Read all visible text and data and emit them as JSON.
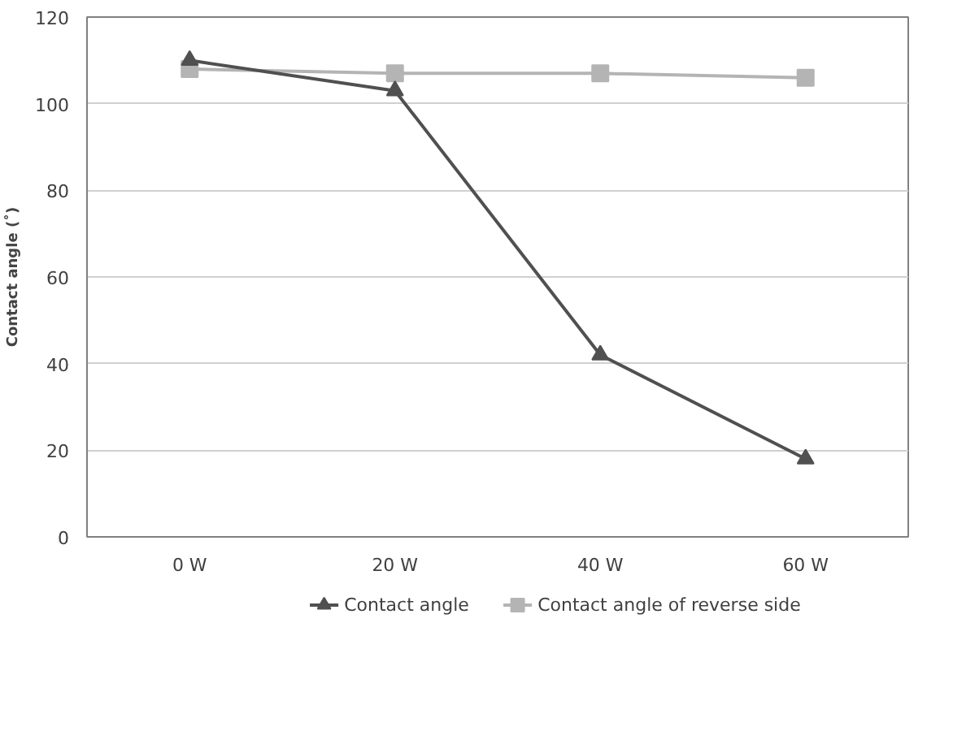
{
  "chart_data": {
    "type": "line",
    "ylabel": "Contact angle (˚)",
    "categories": [
      "0 W",
      "20 W",
      "40 W",
      "60 W"
    ],
    "series": [
      {
        "name": "Contact angle",
        "color": "#505050",
        "marker": "triangle",
        "values": [
          110,
          103,
          42,
          18
        ]
      },
      {
        "name": "Contact angle of reverse side",
        "color": "#b4b4b4",
        "marker": "square",
        "values": [
          108,
          107,
          107,
          106
        ]
      }
    ],
    "ylim": [
      0,
      120
    ],
    "yticks": [
      0,
      20,
      40,
      60,
      80,
      100,
      120
    ],
    "grid": "y",
    "legend": "bottom",
    "line_style": "solid"
  }
}
